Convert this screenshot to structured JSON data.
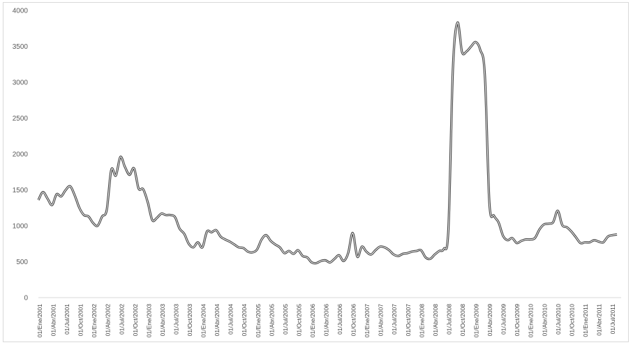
{
  "chart_data": {
    "type": "line",
    "title": "",
    "xlabel": "",
    "ylabel": "",
    "ylim": [
      0,
      4000
    ],
    "y_ticks": [
      "0",
      "500",
      "1000",
      "1500",
      "2000",
      "2500",
      "3000",
      "3500",
      "4000"
    ],
    "grid": false,
    "legend": "none",
    "x_tick_labels": [
      "01/Ene/2001",
      "01/Abr/2001",
      "01/Jul/2001",
      "01/Oct/2001",
      "01/Ene/2002",
      "01/Abr/2002",
      "01/Jul/2002",
      "01/Oct/2002",
      "01/Ene/2003",
      "01/Abr/2003",
      "01/Jul/2003",
      "01/Oct/2003",
      "01/Ene/2004",
      "01/Abr/2004",
      "01/Jul/2004",
      "01/Oct/2004",
      "01/Ene/2005",
      "01/Abr/2005",
      "01/Jul/2005",
      "01/Oct/2005",
      "01/Ene/2006",
      "01/Abr/2006",
      "01/Jul/2006",
      "01/Oct/2006",
      "01/Ene/2007",
      "01/Abr/2007",
      "01/Jul/2007",
      "01/Oct/2007",
      "01/Ene/2008",
      "01/Abr/2008",
      "01/Jul/2008",
      "01/Oct/2008",
      "01/Ene/2009",
      "01/Abr/2009",
      "01/Jul/2009",
      "01/Oct/2009",
      "01/Ene/2010",
      "01/Abr/2010",
      "01/Jul/2010",
      "01/Oct/2010",
      "01/Ene/2011",
      "01/Abr/2011",
      "01/Jul/2011"
    ],
    "series": [
      {
        "color": "#404040",
        "values": [
          1360,
          1470,
          1380,
          1290,
          1440,
          1410,
          1500,
          1550,
          1420,
          1250,
          1150,
          1130,
          1040,
          1000,
          1130,
          1220,
          1780,
          1700,
          1960,
          1820,
          1710,
          1800,
          1520,
          1510,
          1330,
          1080,
          1110,
          1170,
          1150,
          1150,
          1120,
          960,
          890,
          750,
          700,
          770,
          700,
          920,
          910,
          940,
          850,
          810,
          780,
          740,
          700,
          690,
          640,
          630,
          670,
          810,
          870,
          790,
          740,
          700,
          620,
          650,
          610,
          660,
          580,
          560,
          490,
          480,
          510,
          520,
          490,
          540,
          590,
          510,
          620,
          900,
          570,
          710,
          640,
          600,
          660,
          710,
          700,
          660,
          600,
          580,
          610,
          620,
          640,
          650,
          660,
          560,
          540,
          600,
          650,
          680,
          950,
          3200,
          3830,
          3420,
          3430,
          3500,
          3560,
          3450,
          3100,
          1320,
          1140,
          1050,
          860,
          800,
          830,
          760,
          790,
          810,
          810,
          830,
          950,
          1020,
          1030,
          1050,
          1210,
          1010,
          980,
          920,
          840,
          760,
          770,
          770,
          800,
          780,
          770,
          850,
          870,
          880
        ]
      }
    ]
  }
}
